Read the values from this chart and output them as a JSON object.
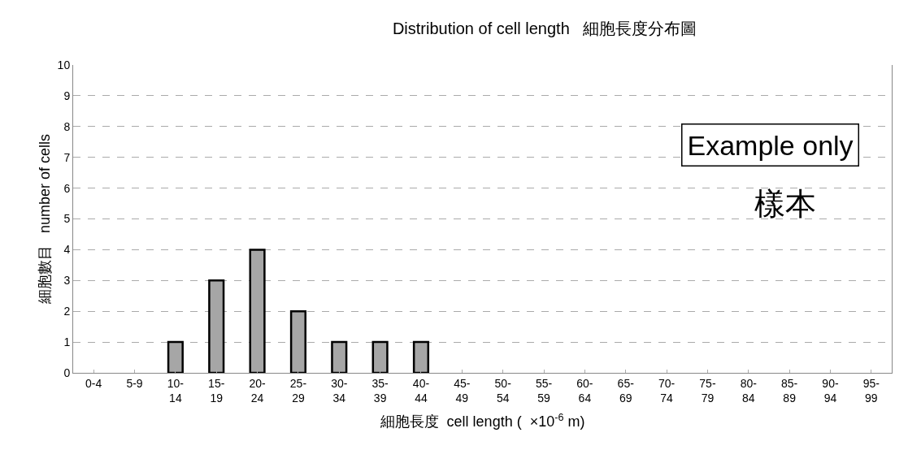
{
  "chart_data": {
    "type": "bar",
    "title": "Distribution of cell length   細胞長度分布圖",
    "xlabel": "細胞長度  cell length (  ×10$^{-6}$ m)",
    "ylabel": "細胞數目   number of cells",
    "categories": [
      "0-4",
      "5-9",
      "10-14",
      "15-19",
      "20-24",
      "25-29",
      "30-34",
      "35-39",
      "40-44",
      "45-49",
      "50-54",
      "55-59",
      "60-64",
      "65-69",
      "70-74",
      "75-79",
      "80-84",
      "85-89",
      "90-94",
      "95-99"
    ],
    "values": [
      0,
      0,
      1,
      3,
      4,
      2,
      1,
      1,
      1,
      0,
      0,
      0,
      0,
      0,
      0,
      0,
      0,
      0,
      0,
      0
    ],
    "color": "#a6a6a6",
    "ylim": [
      0,
      10
    ],
    "yticks": [
      0,
      1,
      2,
      3,
      4,
      5,
      6,
      7,
      8,
      9,
      10
    ],
    "grid": "y",
    "legend": false,
    "annotations": [
      "Example only",
      "樣本"
    ]
  }
}
